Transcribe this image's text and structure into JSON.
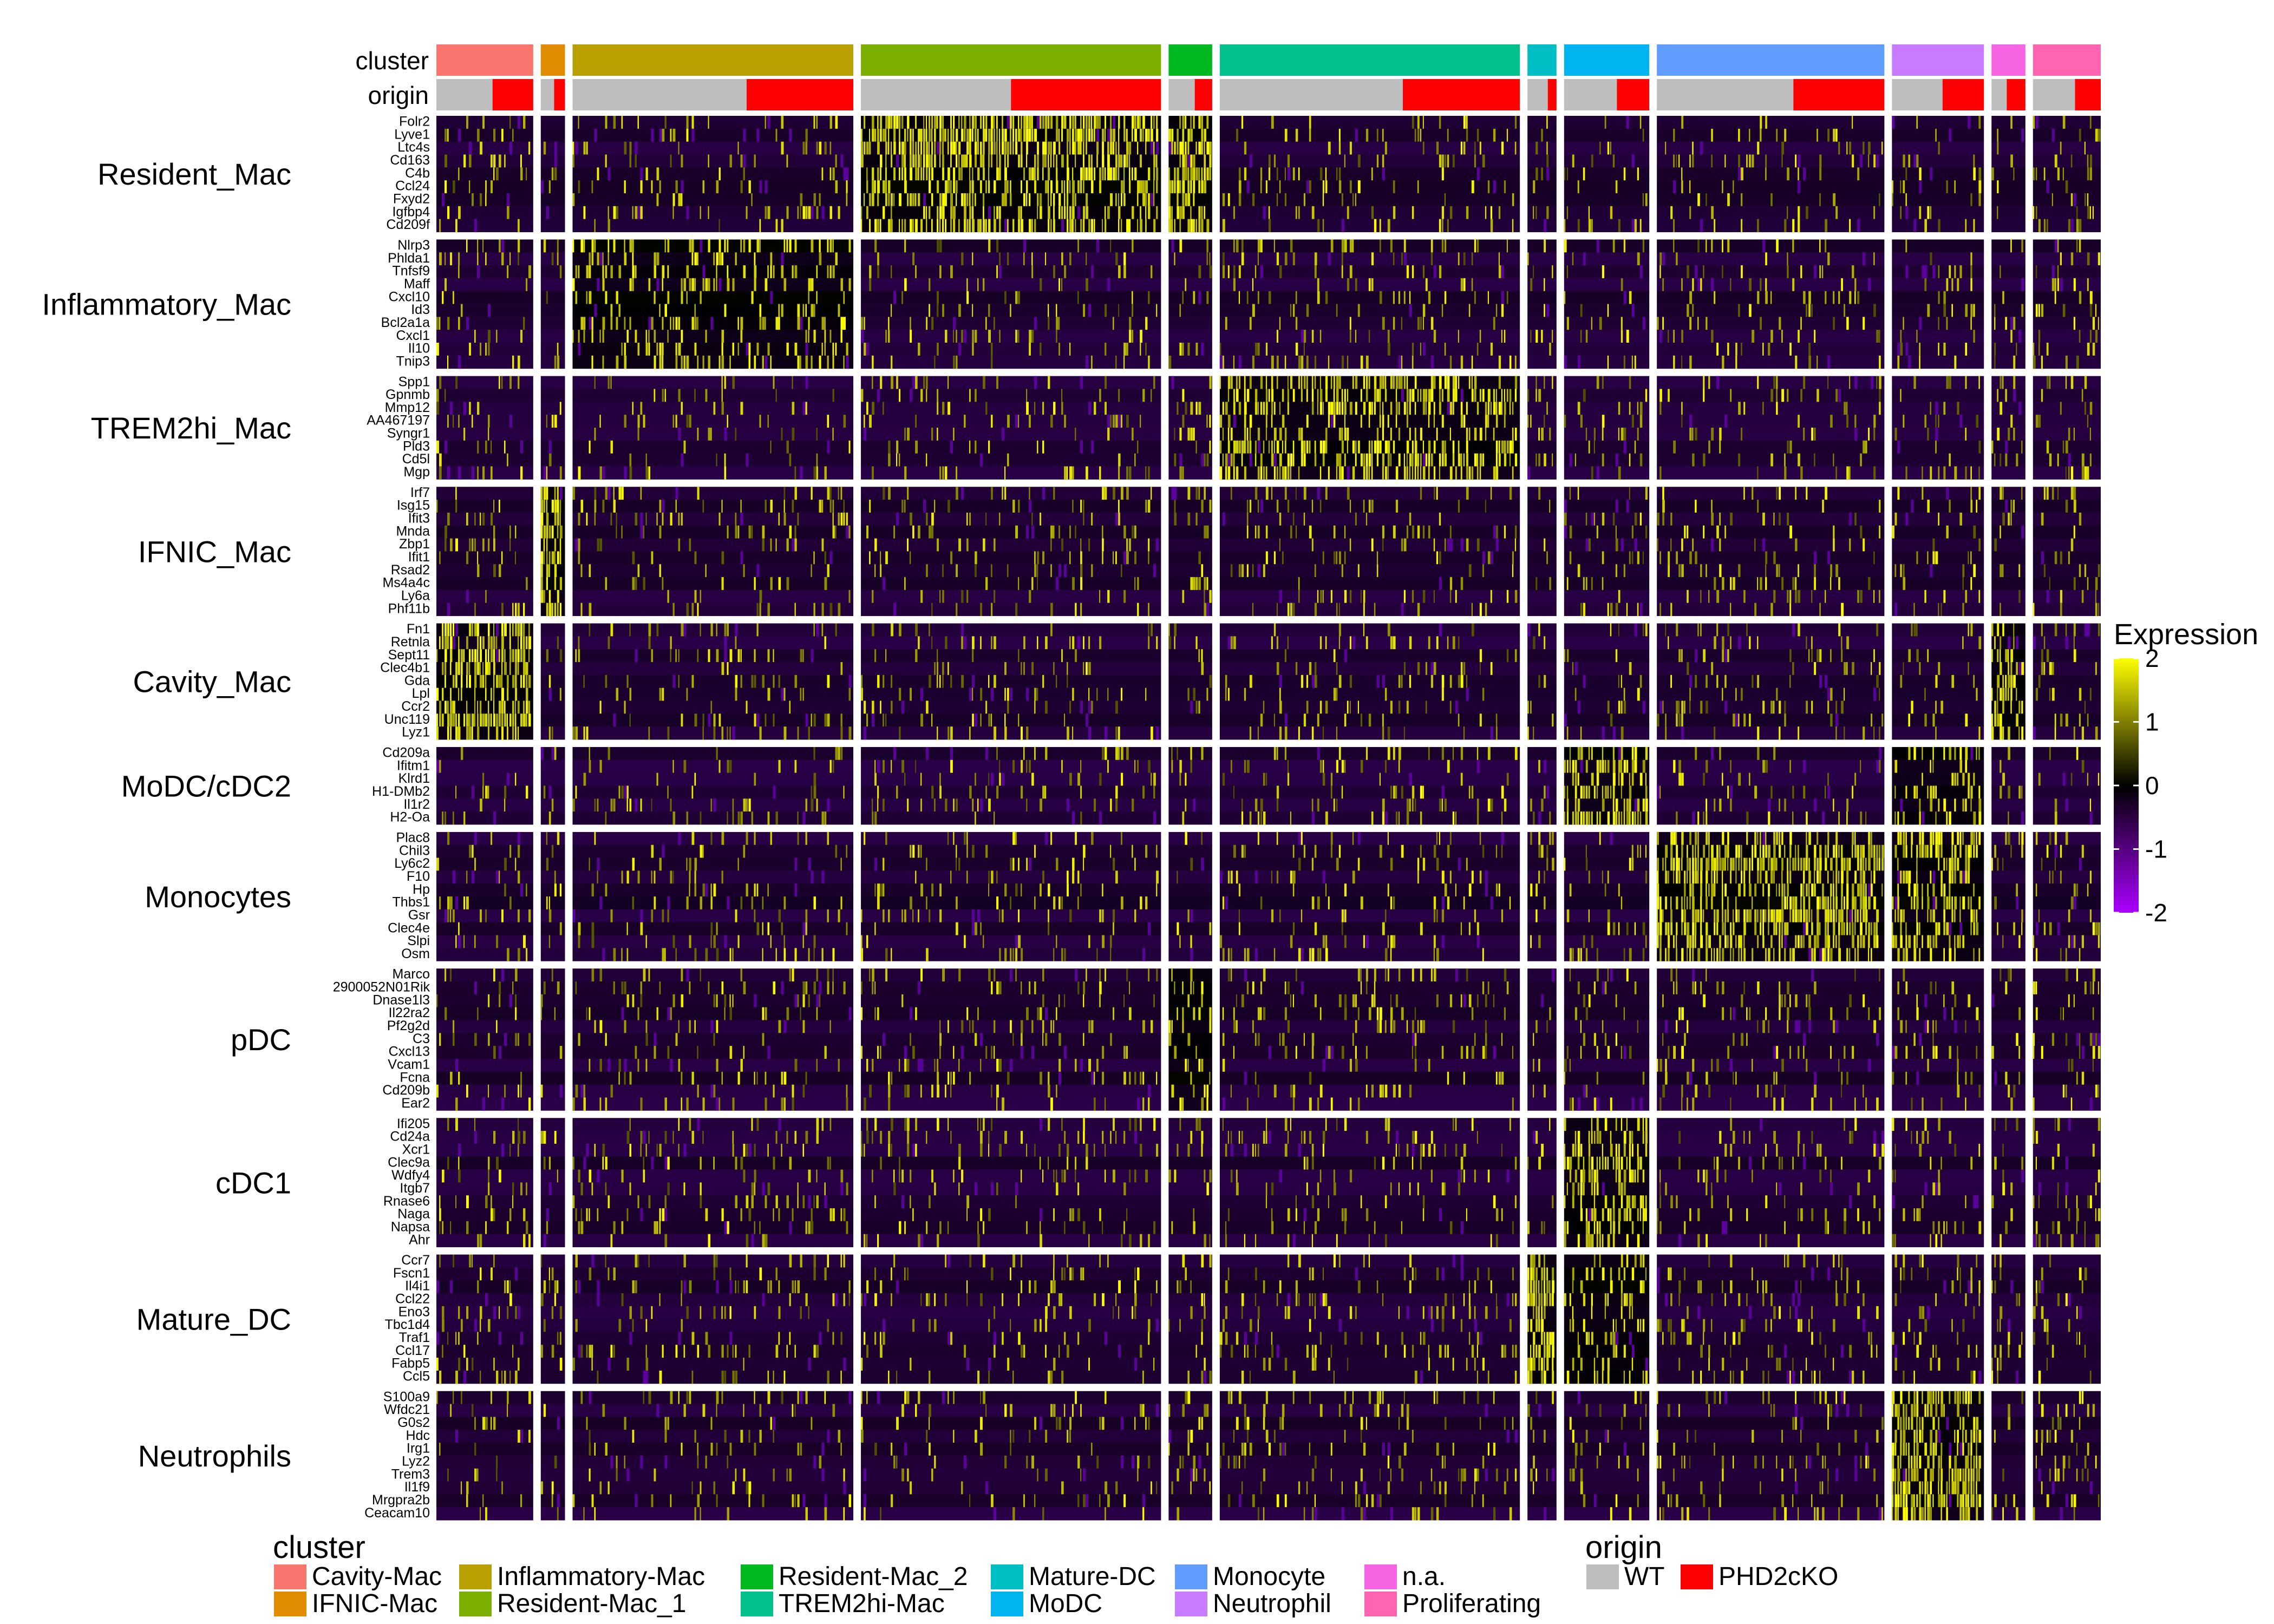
{
  "chart_data": {
    "type": "heatmap",
    "annotation_labels": {
      "cluster": "cluster",
      "origin": "origin"
    },
    "clusters": [
      {
        "name": "Cavity-Mac",
        "color": "#F8766D",
        "wt_frac": 0.58,
        "span": 1.0
      },
      {
        "name": "IFNIC-Mac",
        "color": "#E08B00",
        "wt_frac": 0.55,
        "span": 0.25
      },
      {
        "name": "Inflammatory-Mac",
        "color": "#B8A000",
        "wt_frac": 0.62,
        "span": 2.9
      },
      {
        "name": "Resident-Mac_1",
        "color": "#7CAE00",
        "wt_frac": 0.5,
        "span": 3.1
      },
      {
        "name": "Resident-Mac_2",
        "color": "#00B81F",
        "wt_frac": 0.6,
        "span": 0.45
      },
      {
        "name": "TREM2hi-Mac",
        "color": "#00C08B",
        "wt_frac": 0.61,
        "span": 3.1
      },
      {
        "name": "Mature-DC",
        "color": "#00BFC4",
        "wt_frac": 0.7,
        "span": 0.3
      },
      {
        "name": "MoDC",
        "color": "#00B4EF",
        "wt_frac": 0.62,
        "span": 0.88
      },
      {
        "name": "Monocyte",
        "color": "#619CFF",
        "wt_frac": 0.6,
        "span": 2.35
      },
      {
        "name": "Neutrophil",
        "color": "#C77CFF",
        "wt_frac": 0.55,
        "span": 0.95
      },
      {
        "name": "n.a.",
        "color": "#F564E3",
        "wt_frac": 0.45,
        "span": 0.35
      },
      {
        "name": "Proliferating",
        "color": "#FF64B0",
        "wt_frac": 0.62,
        "span": 0.7
      }
    ],
    "origin_levels": [
      {
        "name": "WT",
        "color": "#BEBEBE"
      },
      {
        "name": "PHD2cKO",
        "color": "#FF0000"
      }
    ],
    "gene_groups": [
      {
        "name": "Resident_Mac",
        "genes": [
          "Folr2",
          "Lyve1",
          "Ltc4s",
          "Cd163",
          "C4b",
          "Ccl24",
          "Fxyd2",
          "Igfbp4",
          "Cd209f"
        ],
        "high": {
          "Resident-Mac_1": 0.8,
          "Resident-Mac_2": 0.9
        }
      },
      {
        "name": "Inflammatory_Mac",
        "genes": [
          "Nlrp3",
          "Phlda1",
          "Tnfsf9",
          "Maff",
          "Cxcl10",
          "Id3",
          "Bcl2a1a",
          "Cxcl1",
          "Il10",
          "Tnip3"
        ],
        "high": {
          "Inflammatory-Mac": 0.3
        }
      },
      {
        "name": "TREM2hi_Mac",
        "genes": [
          "Spp1",
          "Gpnmb",
          "Mmp12",
          "AA467197",
          "Syngr1",
          "Pld3",
          "Cd5l",
          "Mgp"
        ],
        "high": {
          "TREM2hi-Mac": 0.55
        }
      },
      {
        "name": "IFNIC_Mac",
        "genes": [
          "Irf7",
          "Isg15",
          "Ifit3",
          "Mnda",
          "Zbp1",
          "Ifit1",
          "Rsad2",
          "Ms4a4c",
          "Ly6a",
          "Phf11b"
        ],
        "high": {
          "IFNIC-Mac": 0.85
        }
      },
      {
        "name": "Cavity_Mac",
        "genes": [
          "Fn1",
          "Retnla",
          "Sept11",
          "Clec4b1",
          "Gda",
          "Lpl",
          "Ccr2",
          "Unc119",
          "Lyz1"
        ],
        "high": {
          "Cavity-Mac": 0.8,
          "n.a.": 0.6
        }
      },
      {
        "name": "MoDC/cDC2",
        "genes": [
          "Cd209a",
          "Ifitm1",
          "Klrd1",
          "H1-DMb2",
          "Il1r2",
          "H2-Oa"
        ],
        "high": {
          "MoDC": 0.7,
          "Neutrophil": 0.35
        }
      },
      {
        "name": "Monocytes",
        "genes": [
          "Plac8",
          "Chil3",
          "Ly6c2",
          "F10",
          "Hp",
          "Thbs1",
          "Gsr",
          "Clec4e",
          "Slpi",
          "Osm"
        ],
        "high": {
          "Monocyte": 0.7,
          "Neutrophil": 0.55
        }
      },
      {
        "name": "pDC",
        "genes": [
          "Marco",
          "2900052N01Rik",
          "Dnase1l3",
          "Il22ra2",
          "Pf2g2d",
          "C3",
          "Cxcl13",
          "Vcam1",
          "Fcna",
          "Cd209b",
          "Ear2"
        ],
        "high": {
          "Resident-Mac_2": 0.3
        }
      },
      {
        "name": "cDC1",
        "genes": [
          "Ifi205",
          "Cd24a",
          "Xcr1",
          "Clec9a",
          "Wdfy4",
          "Itgb7",
          "Rnase6",
          "Naga",
          "Napsa",
          "Ahr"
        ],
        "high": {
          "MoDC": 0.6
        }
      },
      {
        "name": "Mature_DC",
        "genes": [
          "Ccr7",
          "Fscn1",
          "Il4i1",
          "Ccl22",
          "Eno3",
          "Tbc1d4",
          "Traf1",
          "Ccl17",
          "Fabp5",
          "Ccl5"
        ],
        "high": {
          "Mature-DC": 0.85,
          "MoDC": 0.3
        }
      },
      {
        "name": "Neutrophils",
        "genes": [
          "S100a9",
          "Wfdc21",
          "G0s2",
          "Hdc",
          "Irg1",
          "Lyz2",
          "Trem3",
          "Il1f9",
          "Mrgpra2b",
          "Ceacam10"
        ],
        "high": {
          "Neutrophil": 0.8
        }
      }
    ],
    "color_scale": {
      "title": "Expression",
      "range": [
        -2,
        2
      ],
      "ticks": [
        "2",
        "1",
        "0",
        "-1",
        "-2"
      ],
      "stops": [
        {
          "value": -2,
          "color": "#FF00FF"
        },
        {
          "value": 0,
          "color": "#000000"
        },
        {
          "value": 2,
          "color": "#FFFF00"
        }
      ]
    },
    "legends": {
      "cluster_title": "cluster",
      "origin_title": "origin"
    }
  }
}
